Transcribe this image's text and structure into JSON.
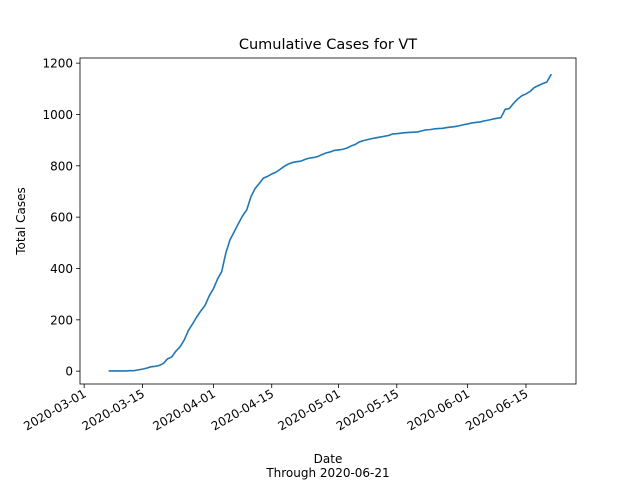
{
  "chart_data": {
    "type": "line",
    "title": "Cumulative Cases for VT",
    "xlabel": "Date",
    "xlabel_note": "Through 2020-06-21",
    "ylabel": "Total Cases",
    "x_type": "date",
    "xlim": [
      "2020-02-29",
      "2020-06-27"
    ],
    "ylim": [
      -50,
      1220
    ],
    "yticks": [
      0,
      200,
      400,
      600,
      800,
      1000,
      1200
    ],
    "xticks": [
      "2020-03-01",
      "2020-03-15",
      "2020-04-01",
      "2020-04-15",
      "2020-05-01",
      "2020-05-15",
      "2020-06-01",
      "2020-06-15"
    ],
    "grid": false,
    "line_color": "#1f77b4",
    "series": [
      {
        "x": [
          "2020-03-07",
          "2020-03-08",
          "2020-03-09",
          "2020-03-10",
          "2020-03-11",
          "2020-03-12",
          "2020-03-13",
          "2020-03-14",
          "2020-03-15",
          "2020-03-16",
          "2020-03-17",
          "2020-03-18",
          "2020-03-19",
          "2020-03-20",
          "2020-03-21",
          "2020-03-22",
          "2020-03-23",
          "2020-03-24",
          "2020-03-25",
          "2020-03-26",
          "2020-03-27",
          "2020-03-28",
          "2020-03-29",
          "2020-03-30",
          "2020-03-31",
          "2020-04-01",
          "2020-04-02",
          "2020-04-03",
          "2020-04-04",
          "2020-04-05",
          "2020-04-06",
          "2020-04-07",
          "2020-04-08",
          "2020-04-09",
          "2020-04-10",
          "2020-04-11",
          "2020-04-12",
          "2020-04-13",
          "2020-04-14",
          "2020-04-15",
          "2020-04-16",
          "2020-04-17",
          "2020-04-18",
          "2020-04-19",
          "2020-04-20",
          "2020-04-21",
          "2020-04-22",
          "2020-04-23",
          "2020-04-24",
          "2020-04-25",
          "2020-04-26",
          "2020-04-27",
          "2020-04-28",
          "2020-04-29",
          "2020-04-30",
          "2020-05-01",
          "2020-05-02",
          "2020-05-03",
          "2020-05-04",
          "2020-05-05",
          "2020-05-06",
          "2020-05-07",
          "2020-05-08",
          "2020-05-09",
          "2020-05-10",
          "2020-05-11",
          "2020-05-12",
          "2020-05-13",
          "2020-05-14",
          "2020-05-15",
          "2020-05-16",
          "2020-05-17",
          "2020-05-18",
          "2020-05-19",
          "2020-05-20",
          "2020-05-21",
          "2020-05-22",
          "2020-05-23",
          "2020-05-24",
          "2020-05-25",
          "2020-05-26",
          "2020-05-27",
          "2020-05-28",
          "2020-05-29",
          "2020-05-30",
          "2020-05-31",
          "2020-06-01",
          "2020-06-02",
          "2020-06-03",
          "2020-06-04",
          "2020-06-05",
          "2020-06-06",
          "2020-06-07",
          "2020-06-08",
          "2020-06-09",
          "2020-06-10",
          "2020-06-11",
          "2020-06-12",
          "2020-06-13",
          "2020-06-14",
          "2020-06-15",
          "2020-06-16",
          "2020-06-17",
          "2020-06-18",
          "2020-06-19",
          "2020-06-20",
          "2020-06-21"
        ],
        "y": [
          1,
          1,
          1,
          1,
          1,
          2,
          2,
          5,
          8,
          12,
          17,
          19,
          22,
          30,
          48,
          55,
          78,
          95,
          121,
          158,
          184,
          211,
          235,
          256,
          293,
          321,
          359,
          388,
          461,
          512,
          543,
          575,
          605,
          628,
          679,
          711,
          731,
          752,
          759,
          768,
          775,
          786,
          798,
          807,
          813,
          816,
          818,
          825,
          830,
          832,
          836,
          843,
          850,
          854,
          860,
          862,
          864,
          869,
          877,
          883,
          893,
          898,
          902,
          906,
          909,
          912,
          915,
          918,
          924,
          925,
          927,
          929,
          930,
          931,
          932,
          936,
          940,
          941,
          944,
          945,
          946,
          949,
          951,
          953,
          956,
          960,
          963,
          967,
          969,
          971,
          975,
          978,
          982,
          985,
          988,
          1020,
          1023,
          1043,
          1060,
          1073,
          1080,
          1090,
          1105,
          1113,
          1120,
          1126,
          1155
        ]
      }
    ]
  }
}
